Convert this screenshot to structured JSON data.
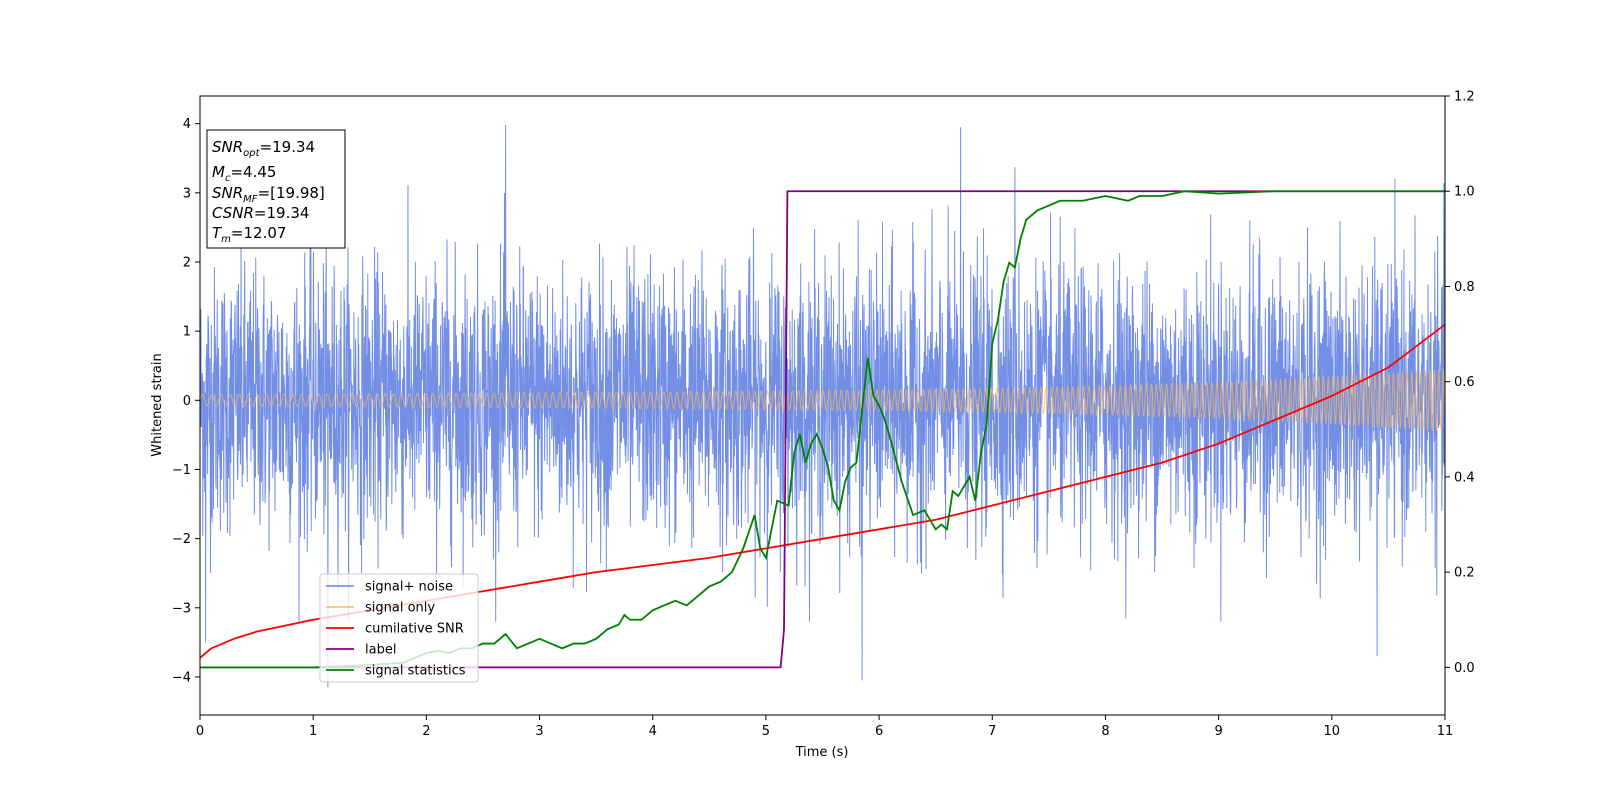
{
  "chart_data": {
    "type": "line",
    "title": "",
    "xlabel": "Time (s)",
    "ylabel": "Whitened strain",
    "y2label": "",
    "xlim": [
      0,
      11
    ],
    "ylim": [
      -4.55,
      4.4
    ],
    "y2lim": [
      -0.1,
      1.2
    ],
    "x_ticks": [
      0,
      1,
      2,
      3,
      4,
      5,
      6,
      7,
      8,
      9,
      10,
      11
    ],
    "y_ticks": [
      -4,
      -3,
      -2,
      -1,
      0,
      1,
      2,
      3,
      4
    ],
    "y_tick_labels": [
      "−4",
      "−3",
      "−2",
      "−1",
      "0",
      "1",
      "2",
      "3",
      "4"
    ],
    "y2_ticks": [
      0.0,
      0.2,
      0.4,
      0.6,
      0.8,
      1.0,
      1.2
    ],
    "y2_tick_labels": [
      "0.0",
      "0.2",
      "0.4",
      "0.6",
      "0.8",
      "1.0",
      "1.2"
    ],
    "grid": false,
    "legend_position": "lower-left",
    "colors": {
      "signal_noise": "#5b7be0",
      "signal_only": "#f5b560",
      "cumulative_snr": "#ff0000",
      "label": "#800080",
      "signal_statistics": "#008000"
    },
    "series": [
      {
        "name": "signal+ noise",
        "axis": "left",
        "kind": "noise-band",
        "description_range": "dense noise, roughly between -2.5 and 2.5 with spikes to about ±4",
        "peak_points": [
          [
            0.05,
            -3.5
          ],
          [
            1.13,
            -4.15
          ],
          [
            2.7,
            3.98
          ],
          [
            5.85,
            -4.05
          ],
          [
            6.72,
            3.95
          ],
          [
            7.2,
            3.37
          ],
          [
            10.4,
            -3.7
          ]
        ]
      },
      {
        "name": "signal only",
        "axis": "left",
        "kind": "chirp-envelope",
        "envelope": [
          [
            0,
            0.08
          ],
          [
            2,
            0.1
          ],
          [
            4,
            0.12
          ],
          [
            6,
            0.15
          ],
          [
            7,
            0.17
          ],
          [
            8,
            0.21
          ],
          [
            9,
            0.26
          ],
          [
            10,
            0.34
          ],
          [
            11,
            0.45
          ]
        ]
      },
      {
        "name": "cumilative SNR",
        "axis": "right",
        "x": [
          0,
          0.1,
          0.3,
          0.5,
          1,
          1.5,
          2,
          2.5,
          3,
          3.5,
          4,
          4.5,
          5,
          5.5,
          6,
          6.5,
          7,
          7.5,
          8,
          8.5,
          9,
          9.5,
          10,
          10.5,
          11
        ],
        "y": [
          0.02,
          0.04,
          0.06,
          0.075,
          0.1,
          0.12,
          0.14,
          0.16,
          0.18,
          0.2,
          0.215,
          0.23,
          0.25,
          0.27,
          0.29,
          0.31,
          0.34,
          0.37,
          0.4,
          0.43,
          0.47,
          0.52,
          0.57,
          0.63,
          0.72
        ]
      },
      {
        "name": "label",
        "axis": "right",
        "x": [
          0,
          5.13,
          5.16,
          5.19,
          11
        ],
        "y": [
          0.0,
          0.0,
          0.08,
          1.0,
          1.0
        ]
      },
      {
        "name": "signal statistics",
        "axis": "right",
        "x": [
          0,
          0.5,
          1,
          1.5,
          1.8,
          2,
          2.1,
          2.2,
          2.3,
          2.4,
          2.5,
          2.6,
          2.7,
          2.8,
          2.9,
          3.0,
          3.1,
          3.2,
          3.3,
          3.4,
          3.5,
          3.6,
          3.7,
          3.75,
          3.8,
          3.9,
          4.0,
          4.1,
          4.2,
          4.3,
          4.4,
          4.5,
          4.6,
          4.7,
          4.8,
          4.9,
          4.95,
          5.0,
          5.1,
          5.2,
          5.25,
          5.3,
          5.35,
          5.4,
          5.45,
          5.5,
          5.55,
          5.6,
          5.65,
          5.7,
          5.75,
          5.8,
          5.9,
          5.95,
          6.0,
          6.05,
          6.1,
          6.2,
          6.3,
          6.4,
          6.5,
          6.55,
          6.6,
          6.65,
          6.7,
          6.75,
          6.8,
          6.85,
          6.9,
          6.95,
          7.0,
          7.05,
          7.1,
          7.15,
          7.2,
          7.25,
          7.3,
          7.4,
          7.5,
          7.6,
          7.8,
          8.0,
          8.2,
          8.3,
          8.5,
          8.7,
          9.0,
          9.5,
          10.0,
          10.5,
          11.0
        ],
        "y": [
          0.0,
          0.0,
          0.0,
          0.005,
          0.01,
          0.03,
          0.035,
          0.03,
          0.04,
          0.04,
          0.05,
          0.05,
          0.07,
          0.04,
          0.05,
          0.06,
          0.05,
          0.04,
          0.05,
          0.05,
          0.06,
          0.08,
          0.09,
          0.11,
          0.1,
          0.1,
          0.12,
          0.13,
          0.14,
          0.13,
          0.15,
          0.17,
          0.18,
          0.2,
          0.25,
          0.32,
          0.25,
          0.23,
          0.35,
          0.34,
          0.45,
          0.49,
          0.43,
          0.47,
          0.49,
          0.46,
          0.42,
          0.35,
          0.33,
          0.39,
          0.42,
          0.43,
          0.65,
          0.57,
          0.55,
          0.52,
          0.48,
          0.39,
          0.32,
          0.33,
          0.29,
          0.3,
          0.29,
          0.37,
          0.36,
          0.38,
          0.4,
          0.35,
          0.45,
          0.51,
          0.68,
          0.73,
          0.81,
          0.85,
          0.84,
          0.9,
          0.94,
          0.96,
          0.97,
          0.98,
          0.98,
          0.99,
          0.98,
          0.99,
          0.99,
          1.0,
          0.995,
          1.0,
          1.0,
          1.0,
          1.0
        ]
      }
    ],
    "legend": [
      {
        "label": "signal+ noise",
        "color": "#5b7be0"
      },
      {
        "label": "signal only",
        "color": "#f5b560"
      },
      {
        "label": "cumilative SNR",
        "color": "#ff0000"
      },
      {
        "label": "label",
        "color": "#800080"
      },
      {
        "label": "signal statistics",
        "color": "#008000"
      }
    ],
    "annotation": [
      {
        "main": "SNR",
        "sub": "opt",
        "value": "=19.34"
      },
      {
        "main": "M",
        "sub": "c",
        "value": "=4.45"
      },
      {
        "main": "SNR",
        "sub": "MF",
        "value": "=[19.98]"
      },
      {
        "main": "CSNR",
        "sub": "",
        "value": "=19.34"
      },
      {
        "main": "T",
        "sub": "m",
        "value": "=12.07"
      }
    ]
  }
}
